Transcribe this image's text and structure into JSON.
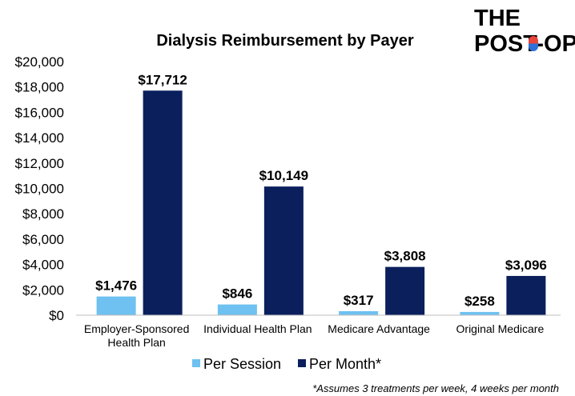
{
  "chart_data": {
    "type": "bar",
    "title": "Dialysis Reimbursement by Payer",
    "categories": [
      [
        "Employer-Sponsored",
        "Health Plan"
      ],
      [
        "Individual Health Plan"
      ],
      [
        "Medicare Advantage"
      ],
      [
        "Original Medicare"
      ]
    ],
    "series": [
      {
        "name": "Per Session",
        "color": "#6EC1F0",
        "values": [
          1476,
          846,
          317,
          258
        ],
        "labels": [
          "$1,476",
          "$846",
          "$317",
          "$258"
        ]
      },
      {
        "name": "Per Month*",
        "color": "#0A1F5C",
        "values": [
          17712,
          10149,
          3808,
          3096
        ],
        "labels": [
          "$17,712",
          "$10,149",
          "$3,808",
          "$3,096"
        ]
      }
    ],
    "ylim": [
      0,
      20000
    ],
    "yticks": [
      0,
      2000,
      4000,
      6000,
      8000,
      10000,
      12000,
      14000,
      16000,
      18000,
      20000
    ],
    "ytick_labels": [
      "$0",
      "$2,000",
      "$4,000",
      "$6,000",
      "$8,000",
      "$10,000",
      "$12,000",
      "$14,000",
      "$16,000",
      "$18,000",
      "$20,000"
    ],
    "xlabel": "",
    "ylabel": "",
    "grid": false,
    "legend_position": "bottom"
  },
  "footnote": "*Assumes 3 treatments per week, 4 weeks per month",
  "logo": {
    "line1": "THE",
    "line2": "POST-OP",
    "pill_colors": [
      "#E8453C",
      "#2E6FD8"
    ]
  }
}
